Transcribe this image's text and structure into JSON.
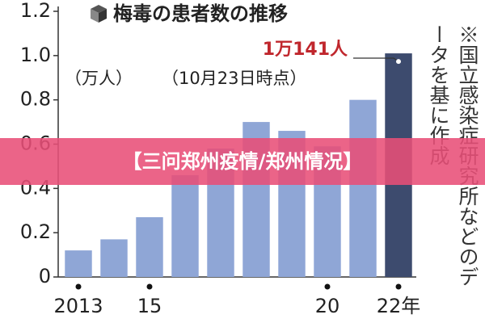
{
  "chart_data": {
    "type": "bar",
    "title": "梅毒の患者数の推移",
    "unit_label": "（万人）",
    "date_label": "（10月23日時点）",
    "annotation": "1万141人",
    "note": "※国立感染症研究所などのデータを基に作成",
    "categories": [
      "2013",
      null,
      "15",
      null,
      null,
      null,
      null,
      "20",
      null,
      "22年"
    ],
    "values": [
      0.12,
      0.17,
      0.27,
      0.46,
      0.58,
      0.7,
      0.66,
      0.59,
      0.8,
      1.01
    ],
    "colors": [
      "#8fa6d6",
      "#8fa6d6",
      "#8fa6d6",
      "#8fa6d6",
      "#8fa6d6",
      "#8fa6d6",
      "#8fa6d6",
      "#8fa6d6",
      "#8fa6d6",
      "#3d4b6e"
    ],
    "ylim": [
      0,
      1.2
    ],
    "yticks": [
      0,
      0.2,
      0.4,
      0.6,
      0.8,
      {
        "value": 1,
        "label": "1.0"
      },
      1.2
    ]
  },
  "overlay_text": "【三问郑州疫情/郑州情况】"
}
